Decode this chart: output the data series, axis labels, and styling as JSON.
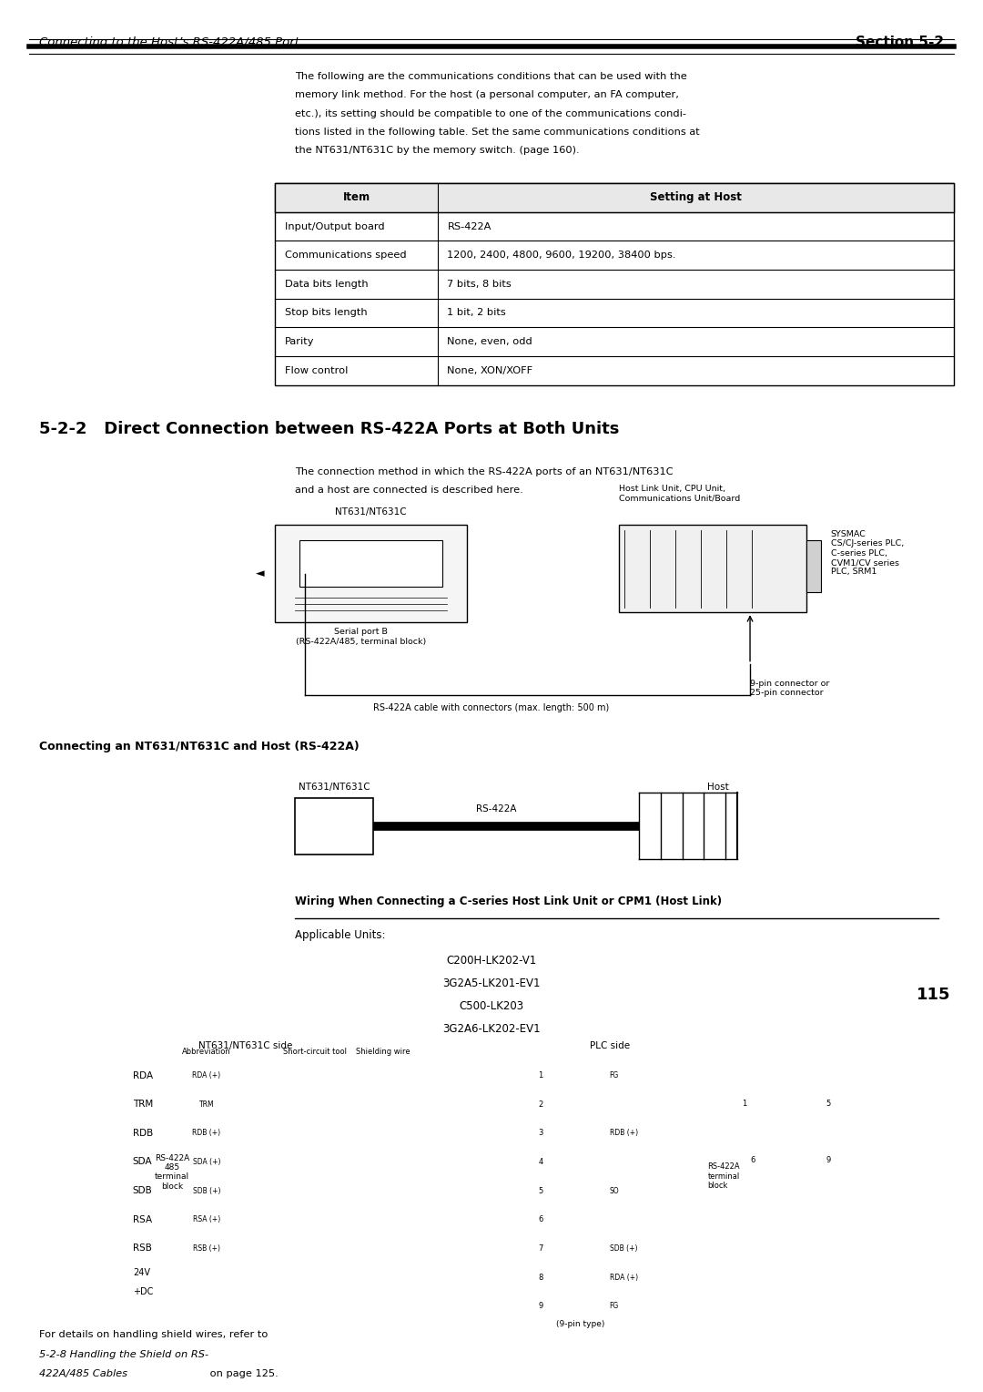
{
  "page_width": 10.8,
  "page_height": 15.28,
  "bg_color": "#ffffff",
  "header_italic_left": "Connecting to the Host’s RS-422A/485 Port",
  "header_bold_right": "Section 5-2",
  "intro_text": "The following are the communications conditions that can be used with the memory link method. For the host (a personal computer, an FA computer, etc.), its setting should be compatible to one of the communications conditions listed in the following table. Set the same communications conditions at the NT631/NT631C by the memory switch. (page 160).",
  "table_headers": [
    "Item",
    "Setting at Host"
  ],
  "table_rows": [
    [
      "Input/Output board",
      "RS-422A"
    ],
    [
      "Communications speed",
      "1200, 2400, 4800, 9600, 19200, 38400 bps."
    ],
    [
      "Data bits length",
      "7 bits, 8 bits"
    ],
    [
      "Stop bits length",
      "1 bit, 2 bits"
    ],
    [
      "Parity",
      "None, even, odd"
    ],
    [
      "Flow control",
      "None, XON/XOFF"
    ]
  ],
  "section_title": "5-2-2   Direct Connection between RS-422A Ports at Both Units",
  "section_body": "The connection method in which the RS-422A ports of an NT631/NT631C and a host are connected is described here.",
  "diagram1_nt_label": "NT631/NT631C",
  "diagram1_serial_label": "Serial port B\n(RS-422A/485, terminal block)",
  "diagram1_host_label": "Host Link Unit, CPU Unit,\nCommunications Unit/Board",
  "diagram1_sysmac_label": "SYSMAC\nCS/CJ-series PLC,\nC-series PLC,\nCVM1/CV series\nPLC, SRM1",
  "diagram1_connector_label": "9-pin connector or\n25-pin connector",
  "diagram1_cable_label": "RS-422A cable with connectors (max. length: 500 m)",
  "connecting_title": "Connecting an NT631/NT631C and Host (RS-422A)",
  "diagram2_nt_label": "NT631/NT631C",
  "diagram2_host_label": "Host",
  "diagram2_rs422_label": "RS-422A",
  "wiring_title": "Wiring When Connecting a C-series Host Link Unit or CPM1 (Host Link)",
  "applicable_units_label": "Applicable Units:",
  "applicable_units": [
    "C200H-LK202-V1",
    "3G2A5-LK201-EV1",
    "C500-LK203",
    "3G2A6-LK202-EV1"
  ],
  "terminal_labels_left": [
    "RDA",
    "TRM",
    "RDB",
    "SDA",
    "SDB",
    "RSA",
    "RSB"
  ],
  "terminal_power": [
    "24V",
    "+DC"
  ],
  "wiring_nt_side": "NT631/NT631C side",
  "wiring_plc_side": "PLC side",
  "wiring_rs422_block_label": "RS-422A\n485\nterminal\nblock",
  "footer_text": "For details on handling shield wires, refer to 5-2-8 Handling the Shield on RS-422A/485 Cables on page 125.",
  "footer_italic_parts": [
    "5-2-8 Handling the Shield on RS-422A/485 Cables"
  ],
  "page_number": "115"
}
